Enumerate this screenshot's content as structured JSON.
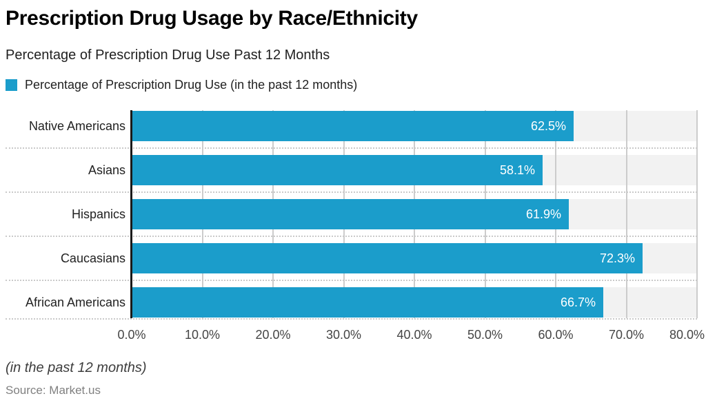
{
  "header": {
    "title": "Prescription Drug Usage by Race/Ethnicity",
    "subtitle": "Percentage of Prescription Drug Use Past 12 Months"
  },
  "legend": {
    "label": "Percentage of Prescription Drug Use (in the past 12 months)"
  },
  "chart_data": {
    "type": "bar",
    "orientation": "horizontal",
    "title": "Prescription Drug Usage by Race/Ethnicity",
    "subtitle": "Percentage of Prescription Drug Use Past 12 Months",
    "xlabel": "",
    "ylabel": "",
    "categories": [
      "Native Americans",
      "Asians",
      "Hispanics",
      "Caucasians",
      "African Americans"
    ],
    "series": [
      {
        "name": "Percentage of Prescription Drug Use (in the past 12 months)",
        "values": [
          62.5,
          58.1,
          61.9,
          72.3,
          66.7
        ],
        "value_labels": [
          "62.5%",
          "58.1%",
          "61.9%",
          "72.3%",
          "66.7%"
        ]
      }
    ],
    "xlim": [
      0,
      80
    ],
    "x_tick_values": [
      0,
      10,
      20,
      30,
      40,
      50,
      60,
      70,
      80
    ],
    "x_tick_labels": [
      "0.0%",
      "10.0%",
      "20.0%",
      "30.0%",
      "40.0%",
      "50.0%",
      "60.0%",
      "70.0%",
      "80.0%"
    ],
    "grid": true,
    "legend_position": "top"
  },
  "footer": {
    "note": "(in the past 12 months)",
    "source": "Source: Market.us"
  },
  "colors": {
    "accent": "#1B9DCB",
    "band": "#F2F2F2",
    "gridline": "#CCCCCC",
    "separator": "#C9C9C9",
    "axis": "#1A1A1A",
    "title": "#000000",
    "text": "#212121",
    "tick": "#444444",
    "value_label": "#FFFFFF",
    "note": "#3D3D3D",
    "source": "#808080"
  }
}
